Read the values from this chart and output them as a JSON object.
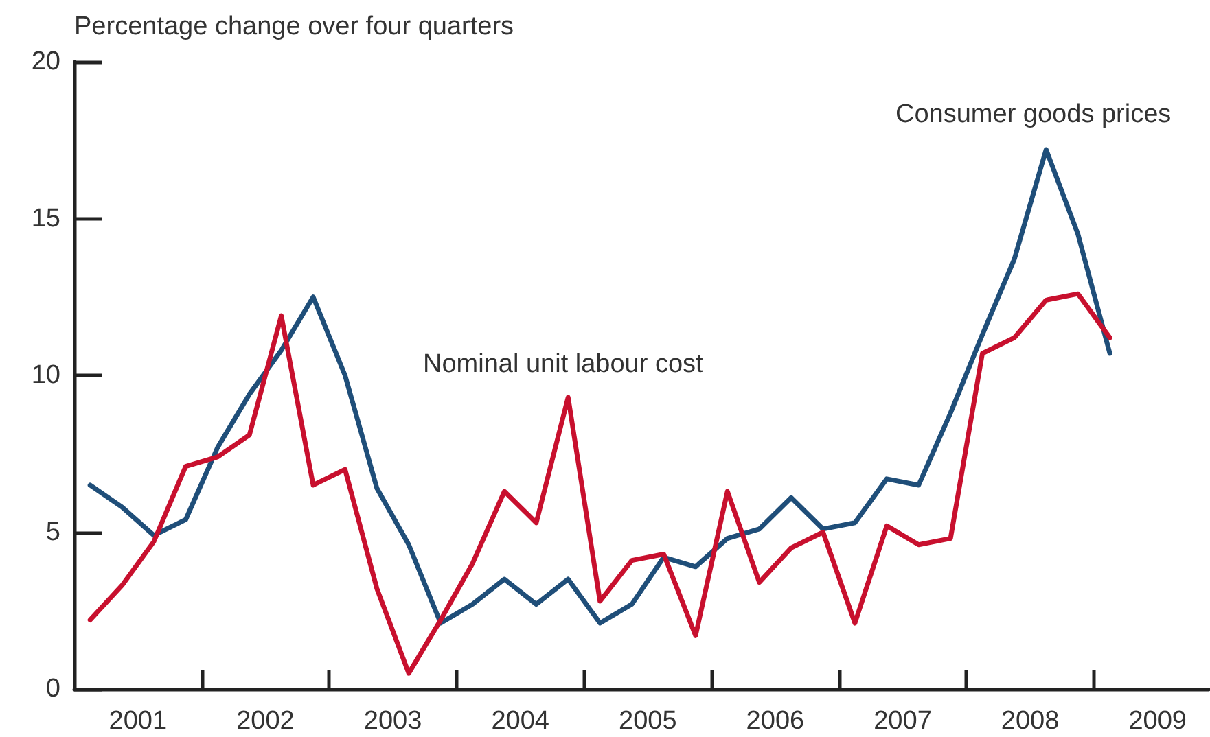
{
  "chart_data": {
    "type": "line",
    "ylabel": "Percentage change over four quarters",
    "x": [
      2001.125,
      2001.375,
      2001.625,
      2001.875,
      2002.125,
      2002.375,
      2002.625,
      2002.875,
      2003.125,
      2003.375,
      2003.625,
      2003.875,
      2004.125,
      2004.375,
      2004.625,
      2004.875,
      2005.125,
      2005.375,
      2005.625,
      2005.875,
      2006.125,
      2006.375,
      2006.625,
      2006.875,
      2007.125,
      2007.375,
      2007.625,
      2007.875,
      2008.125,
      2008.375,
      2008.625,
      2008.875,
      2009.125
    ],
    "series": [
      {
        "name": "Consumer goods prices",
        "color": "#1f4e79",
        "values": [
          6.5,
          5.8,
          4.9,
          5.4,
          7.7,
          9.4,
          10.8,
          12.5,
          10.0,
          6.4,
          4.6,
          2.1,
          2.7,
          3.5,
          2.7,
          3.5,
          2.1,
          2.7,
          4.2,
          3.9,
          4.8,
          5.1,
          6.1,
          5.1,
          5.3,
          6.7,
          6.5,
          8.8,
          11.3,
          13.7,
          17.2,
          14.5,
          10.7
        ]
      },
      {
        "name": "Nominal unit labour cost",
        "color": "#c8102e",
        "values": [
          2.2,
          3.3,
          4.7,
          7.1,
          7.4,
          8.1,
          11.9,
          6.5,
          7.0,
          3.2,
          0.5,
          2.2,
          4.0,
          6.3,
          5.3,
          9.3,
          2.8,
          4.1,
          4.3,
          1.7,
          6.3,
          3.4,
          4.5,
          5.0,
          2.1,
          5.2,
          4.6,
          4.8,
          10.7,
          11.2,
          12.4,
          12.6,
          11.2
        ]
      }
    ],
    "xlim": [
      2001,
      2009.9
    ],
    "xticks": [
      {
        "value": 2001.5,
        "label": "2001"
      },
      {
        "value": 2002,
        "label": null
      },
      {
        "value": 2002.5,
        "label": "2002"
      },
      {
        "value": 2003,
        "label": null
      },
      {
        "value": 2003.5,
        "label": "2003"
      },
      {
        "value": 2004,
        "label": null
      },
      {
        "value": 2004.5,
        "label": "2004"
      },
      {
        "value": 2005,
        "label": null
      },
      {
        "value": 2005.5,
        "label": "2005"
      },
      {
        "value": 2006,
        "label": null
      },
      {
        "value": 2006.5,
        "label": "2006"
      },
      {
        "value": 2007,
        "label": null
      },
      {
        "value": 2007.5,
        "label": "2007"
      },
      {
        "value": 2008,
        "label": null
      },
      {
        "value": 2008.5,
        "label": "2008"
      },
      {
        "value": 2009,
        "label": null
      },
      {
        "value": 2009.5,
        "label": "2009"
      }
    ],
    "ylim": [
      0,
      20
    ],
    "yticks": [
      0,
      5,
      10,
      15,
      20
    ],
    "grid": false,
    "legend": false,
    "marker": "none",
    "line_style": "solid"
  }
}
